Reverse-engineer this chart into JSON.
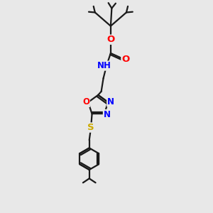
{
  "background_color": "#e8e8e8",
  "bond_color": "#1a1a1a",
  "atom_colors": {
    "O": "#ff0000",
    "N": "#0000ff",
    "S": "#ccaa00",
    "C": "#1a1a1a"
  },
  "font_size": 8.5,
  "line_width": 1.6,
  "figsize": [
    3.0,
    3.0
  ],
  "dpi": 100
}
